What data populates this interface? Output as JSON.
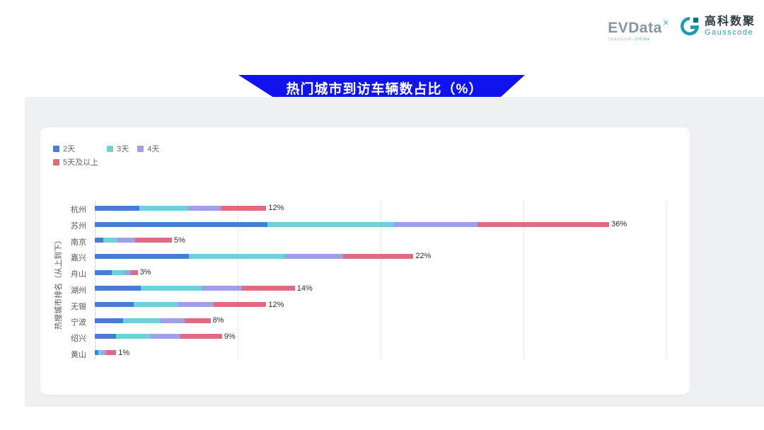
{
  "header": {
    "evdata_logo": {
      "text": "EVData",
      "superscript": "✕",
      "subtext_left": "SHANGHAI",
      "subtext_right": "CHINA"
    },
    "gausscode_logo": {
      "cn": "高科数聚",
      "en": "Gausscode"
    }
  },
  "banner": {
    "title": "热门城市到访车辆数占比（%）",
    "color": "#1013ee"
  },
  "chart_data": {
    "type": "bar",
    "orientation": "horizontal",
    "stacked": true,
    "title": "热门城市到访车辆数占比（%）",
    "ylabel": "热搜城市排名（从上到下）",
    "xlim": [
      0,
      40
    ],
    "gridline_interval": 10,
    "grid": true,
    "legend_position": "top-left",
    "legend_rows": [
      [
        "2天",
        "3天",
        "4天"
      ],
      [
        "5天及以上"
      ]
    ],
    "categories": [
      "杭州",
      "苏州",
      "南京",
      "嘉兴",
      "舟山",
      "湖州",
      "无锡",
      "宁波",
      "绍兴",
      "黄山"
    ],
    "total_labels": [
      "12%",
      "36%",
      "5%",
      "22%",
      "3%",
      "14%",
      "12%",
      "8%",
      "9%",
      "1%"
    ],
    "totals": [
      12,
      36,
      5,
      22,
      3,
      14,
      12,
      8,
      9,
      1
    ],
    "series": [
      {
        "name": "2天",
        "color": "#4b7bd5",
        "values": [
          3.1,
          12.1,
          0.6,
          6.6,
          1.2,
          3.2,
          2.7,
          2.0,
          1.5,
          0.25
        ]
      },
      {
        "name": "3天",
        "color": "#6fd0d9",
        "values": [
          3.4,
          8.8,
          1.0,
          6.7,
          0.85,
          4.3,
          3.1,
          2.6,
          2.4,
          0.2
        ]
      },
      {
        "name": "4天",
        "color": "#a19fe8",
        "values": [
          2.3,
          5.9,
          1.2,
          4.1,
          0.5,
          2.8,
          2.5,
          1.7,
          2.1,
          0.35
        ]
      },
      {
        "name": "5天及以上",
        "color": "#e06a80",
        "values": [
          3.2,
          9.2,
          2.6,
          4.9,
          0.45,
          3.7,
          3.7,
          1.8,
          2.9,
          0.7
        ]
      }
    ]
  }
}
